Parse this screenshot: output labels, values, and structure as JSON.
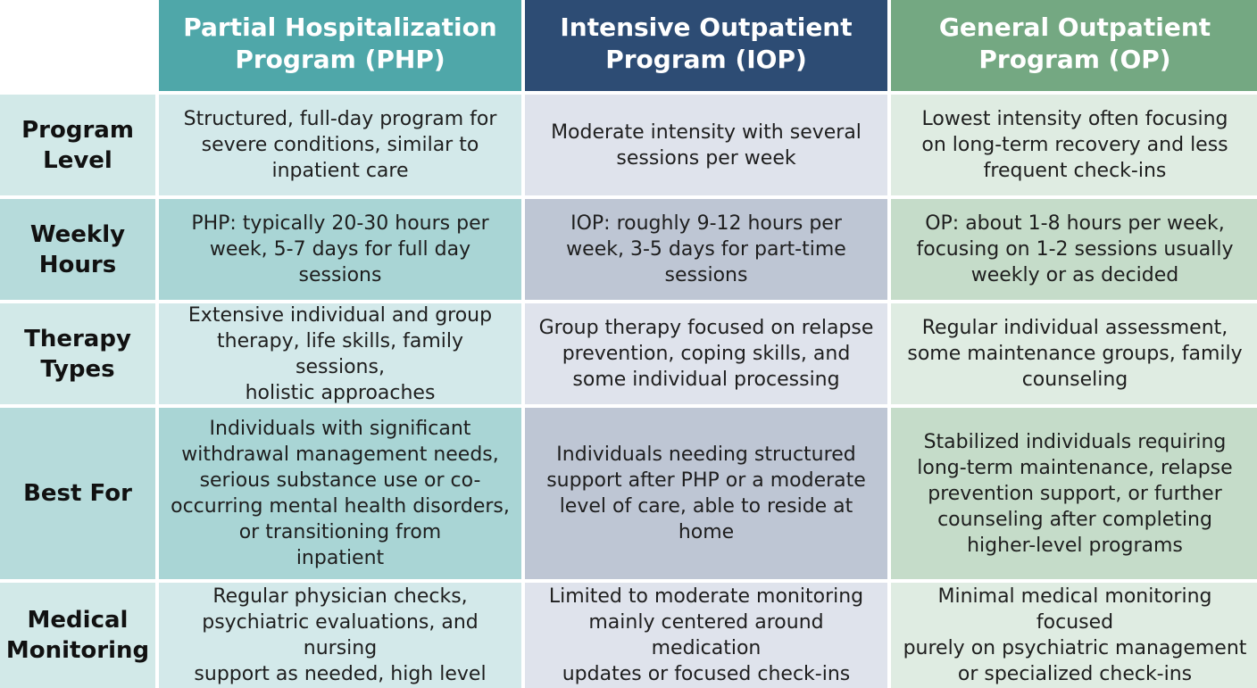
{
  "columns": {
    "php": "Partial Hospitalization\nProgram (PHP)",
    "iop": "Intensive Outpatient\nProgram (IOP)",
    "op": "General Outpatient\nProgram (OP)"
  },
  "rows": [
    {
      "label": "Program\nLevel",
      "php": "Structured, full-day program for\nsevere conditions, similar to\ninpatient care",
      "iop": "Moderate intensity with several\nsessions per week",
      "op": "Lowest intensity often focusing\non long-term recovery and less\nfrequent check-ins"
    },
    {
      "label": "Weekly\nHours",
      "php": "PHP: typically 20-30 hours per\nweek, 5-7 days for full day\nsessions",
      "iop": "IOP: roughly 9-12 hours per\nweek, 3-5 days for part-time\nsessions",
      "op": "OP: about 1-8 hours per week,\nfocusing on 1-2 sessions usually\nweekly or as decided"
    },
    {
      "label": "Therapy\nTypes",
      "php": "Extensive individual and group\ntherapy, life skills, family sessions,\nholistic approaches",
      "iop": "Group therapy focused on relapse\nprevention, coping skills, and\nsome individual processing",
      "op": "Regular individual assessment,\nsome maintenance groups, family\ncounseling"
    },
    {
      "label": "Best For",
      "php": "Individuals with significant\nwithdrawal management needs,\nserious substance use or co-\noccurring mental health disorders,\nor transitioning from\ninpatient",
      "iop": "Individuals needing structured\nsupport after PHP or a moderate\nlevel of care, able to reside at\nhome",
      "op": "Stabilized individuals requiring\nlong-term maintenance, relapse\nprevention support, or further\ncounseling after completing\nhigher-level programs"
    },
    {
      "label": "Medical\nMonitoring",
      "php": "Regular physician checks,\npsychiatric evaluations, and nursing\nsupport as needed, high level",
      "iop": "Limited to moderate monitoring\nmainly centered around medication\nupdates or focused check-ins",
      "op": "Minimal medical monitoring focused\npurely on psychiatric management\nor specialized check-ins"
    }
  ]
}
